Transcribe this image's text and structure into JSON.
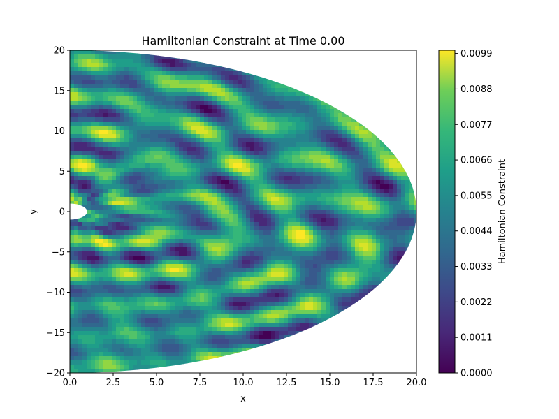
{
  "chart_data": {
    "type": "heatmap",
    "title": "Hamiltonian Constraint at Time 0.00",
    "xlabel": "x",
    "ylabel": "y",
    "xlim": [
      0,
      20
    ],
    "ylim": [
      -20,
      20
    ],
    "x_ticks": [
      "0.0",
      "2.5",
      "5.0",
      "7.5",
      "10.0",
      "12.5",
      "15.0",
      "17.5",
      "20.0"
    ],
    "x_tick_values": [
      0,
      2.5,
      5,
      7.5,
      10,
      12.5,
      15,
      17.5,
      20
    ],
    "y_ticks": [
      "20",
      "15",
      "10",
      "5",
      "0",
      "−5",
      "−10",
      "−15",
      "−20"
    ],
    "y_tick_values": [
      20,
      15,
      10,
      5,
      0,
      -5,
      -10,
      -15,
      -20
    ],
    "colormap": "viridis",
    "colorbar": {
      "label": "Hamiltonian Constraint",
      "range": [
        0,
        0.01
      ],
      "ticks": [
        "0.0099",
        "0.0088",
        "0.0077",
        "0.0066",
        "0.0055",
        "0.0044",
        "0.0033",
        "0.0022",
        "0.0011",
        "0.0000"
      ],
      "tick_values": [
        0.0099,
        0.0088,
        0.0077,
        0.0066,
        0.0055,
        0.0044,
        0.0033,
        0.0022,
        0.0011,
        0.0
      ]
    },
    "domain": {
      "shape": "half-annulus (elliptical outer boundary)",
      "inner_radius": 1,
      "outer_x_extent": 20,
      "outer_y_extent": 20
    },
    "grid": false
  }
}
